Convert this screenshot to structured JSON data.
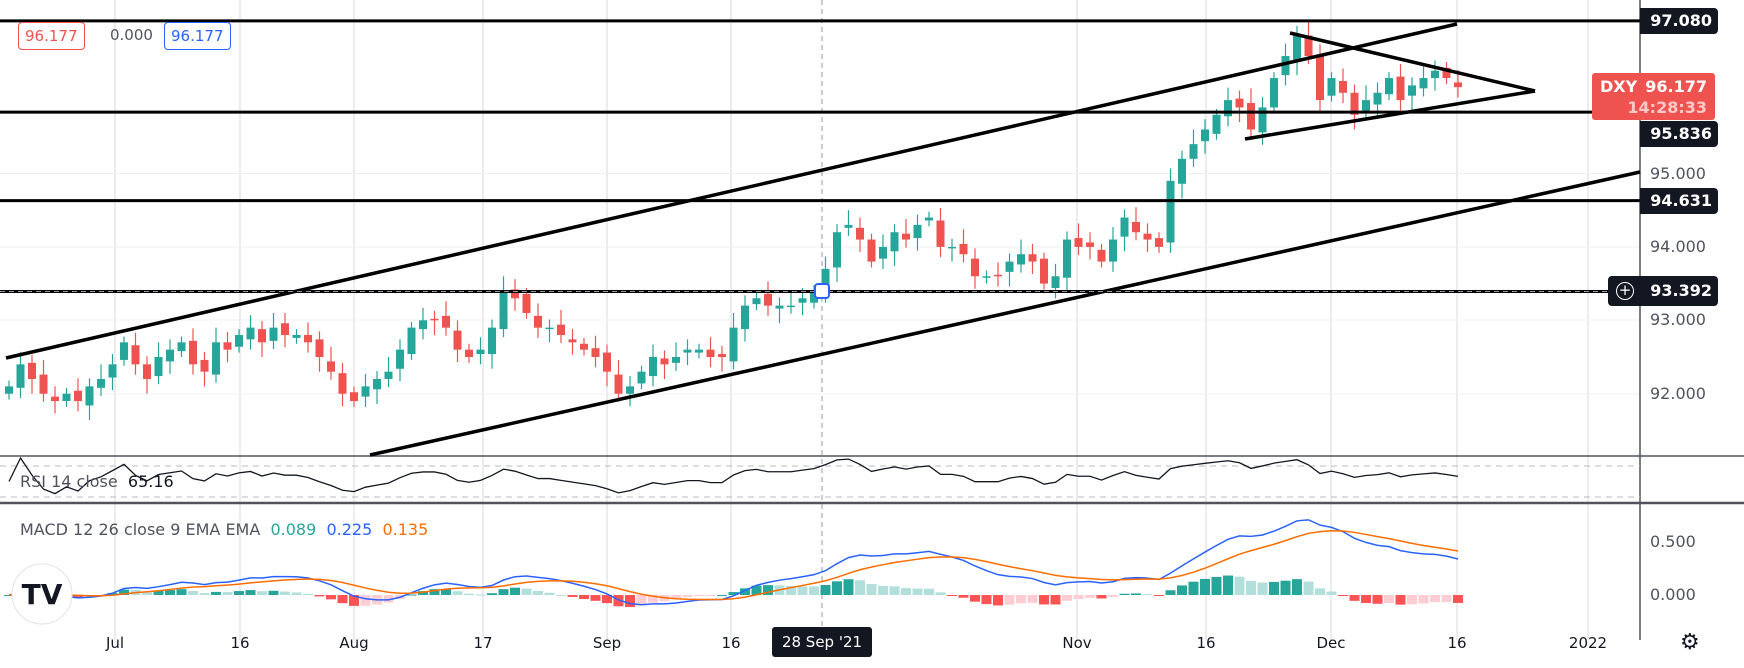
{
  "header": {
    "ohlc_value_red": "96.177",
    "change_value": "0.000",
    "ohlc_value_blue": "96.177"
  },
  "price_scale": {
    "ticks": [
      "95.000",
      "94.000",
      "93.000",
      "92.000"
    ],
    "levels": [
      {
        "label": "97.080",
        "value": 97.08
      },
      {
        "label": "95.836",
        "value": 95.836
      },
      {
        "label": "94.631",
        "value": 94.631
      }
    ],
    "crosshair": {
      "label": "93.392",
      "value": 93.392
    },
    "last": {
      "symbol": "DXY",
      "price": "96.177",
      "countdown": "14:28:33",
      "value": 96.177
    }
  },
  "time_scale": {
    "ticks": [
      "Jul",
      "16",
      "Aug",
      "17",
      "Sep",
      "16",
      "Nov",
      "16",
      "Dec",
      "16",
      "2022"
    ],
    "crosshair_label": "28 Sep '21"
  },
  "rsi": {
    "title": "RSI 14 close",
    "value": "65.16"
  },
  "macd": {
    "title": "MACD 12 26 close 9 EMA EMA",
    "hist": "0.089",
    "macd": "0.225",
    "signal": "0.135",
    "ticks": [
      "0.500",
      "0.000"
    ]
  },
  "colors": {
    "up": "#26a69a",
    "down": "#ef5350",
    "macd": "#2962ff",
    "signal": "#ff6d00",
    "last": "#ef5350"
  },
  "chart_data": {
    "type": "candlestick",
    "symbol": "DXY",
    "interval": "1D",
    "closes": [
      92.1,
      92.4,
      92.2,
      92.0,
      91.9,
      92.0,
      91.9,
      92.1,
      92.2,
      92.4,
      92.7,
      92.4,
      92.2,
      92.5,
      92.6,
      92.7,
      92.4,
      92.3,
      92.7,
      92.6,
      92.8,
      92.9,
      92.7,
      92.9,
      92.8,
      92.8,
      92.7,
      92.5,
      92.3,
      92.0,
      91.9,
      92.1,
      92.2,
      92.3,
      92.6,
      92.9,
      93.0,
      93.0,
      92.9,
      92.6,
      92.5,
      92.6,
      92.9,
      93.4,
      93.3,
      93.1,
      92.9,
      92.9,
      92.8,
      92.7,
      92.6,
      92.5,
      92.3,
      92.0,
      92.1,
      92.3,
      92.5,
      92.4,
      92.5,
      92.6,
      92.6,
      92.5,
      92.5,
      92.9,
      93.2,
      93.3,
      93.2,
      93.2,
      93.2,
      93.3,
      93.4,
      93.7,
      94.2,
      94.3,
      94.1,
      93.8,
      94.0,
      94.2,
      94.1,
      94.3,
      94.4,
      94.0,
      94.0,
      93.9,
      93.6,
      93.6,
      93.6,
      93.8,
      93.9,
      93.8,
      93.5,
      93.6,
      94.1,
      94.0,
      94.0,
      93.8,
      94.1,
      94.4,
      94.2,
      94.1,
      94.0,
      94.9,
      95.2,
      95.4,
      95.6,
      95.8,
      96.0,
      95.9,
      95.6,
      95.9,
      96.3,
      96.6,
      96.9,
      96.6,
      96.0,
      96.3,
      96.1,
      95.8,
      96.0,
      96.1,
      96.3,
      96.0,
      96.2,
      96.3,
      96.4,
      96.3,
      96.177
    ],
    "ylim": [
      91.4,
      97.3
    ],
    "horizontal_levels": [
      97.08,
      95.836,
      94.631,
      93.392
    ],
    "grid": true
  }
}
